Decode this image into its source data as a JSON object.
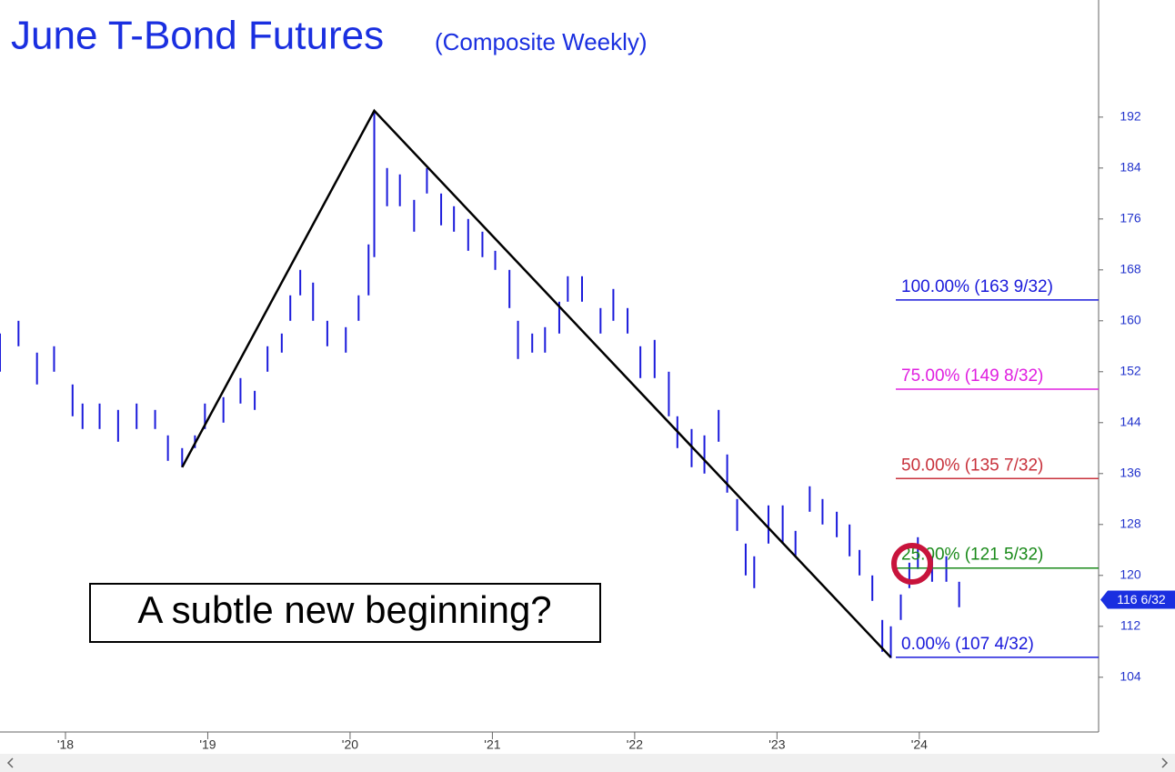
{
  "chart_data": {
    "type": "hlbar",
    "title": "June T-Bond Futures",
    "subtitle": "(Composite Weekly)",
    "annotation": "A subtle new beginning?",
    "color": "#1a1adb",
    "x": [
      2017.54,
      2017.67,
      2017.8,
      2017.92,
      2018.05,
      2018.12,
      2018.24,
      2018.37,
      2018.5,
      2018.63,
      2018.72,
      2018.82,
      2018.91,
      2018.98,
      2019.11,
      2019.23,
      2019.33,
      2019.42,
      2019.52,
      2019.58,
      2019.65,
      2019.74,
      2019.84,
      2019.97,
      2020.06,
      2020.13,
      2020.17,
      2020.26,
      2020.35,
      2020.45,
      2020.54,
      2020.64,
      2020.73,
      2020.83,
      2020.93,
      2021.02,
      2021.12,
      2021.18,
      2021.28,
      2021.37,
      2021.47,
      2021.53,
      2021.63,
      2021.76,
      2021.85,
      2021.95,
      2022.04,
      2022.14,
      2022.24,
      2022.3,
      2022.4,
      2022.49,
      2022.59,
      2022.65,
      2022.72,
      2022.78,
      2022.84,
      2022.94,
      2023.04,
      2023.13,
      2023.23,
      2023.32,
      2023.42,
      2023.51,
      2023.58,
      2023.67,
      2023.74,
      2023.8,
      2023.87,
      2023.93,
      2023.99,
      2024.09,
      2024.19,
      2024.28
    ],
    "high": [
      158,
      160,
      155,
      156,
      150,
      147,
      147,
      146,
      147,
      146,
      142,
      140,
      142,
      147,
      148,
      151,
      149,
      156,
      158,
      164,
      168,
      166,
      160,
      159,
      164,
      172,
      193,
      184,
      183,
      179,
      184,
      180,
      178,
      176,
      174,
      171,
      168,
      160,
      158,
      159,
      163,
      167,
      167,
      162,
      165,
      162,
      156,
      157,
      152,
      145,
      143,
      142,
      146,
      139,
      132,
      125,
      123,
      131,
      131,
      127,
      134,
      132,
      130,
      128,
      124,
      120,
      113,
      112,
      117,
      122,
      126,
      123,
      123,
      119
    ],
    "low": [
      152,
      156,
      150,
      152,
      145,
      143,
      143,
      141,
      143,
      143,
      138,
      137,
      140,
      143,
      144,
      147,
      146,
      152,
      155,
      160,
      164,
      160,
      156,
      155,
      160,
      164,
      170,
      178,
      178,
      174,
      180,
      175,
      174,
      171,
      170,
      168,
      162,
      154,
      155,
      155,
      158,
      163,
      163,
      158,
      160,
      158,
      151,
      151,
      145,
      140,
      137,
      136,
      141,
      133,
      127,
      120,
      118,
      125,
      125,
      123,
      130,
      128,
      126,
      123,
      120,
      116,
      108,
      107,
      113,
      118,
      121,
      119,
      119,
      115
    ],
    "trend": {
      "x": [
        2018.82,
        2020.17,
        2023.8
      ],
      "y": [
        137,
        193,
        107.125
      ]
    },
    "levels": [
      {
        "label": "100.00% (163 9/32)",
        "value": 163.28125,
        "color": "#1a1adb"
      },
      {
        "label": "75.00% (149 8/32)",
        "value": 149.25,
        "color": "#e020e0"
      },
      {
        "label": "50.00% (135 7/32)",
        "value": 135.21875,
        "color": "#c8323c"
      },
      {
        "label": "25.00% (121 5/32)",
        "value": 121.15625,
        "color": "#1a8a1a"
      },
      {
        "label": "0.00% (107 4/32)",
        "value": 107.125,
        "color": "#1a1adb"
      }
    ],
    "last_price": {
      "value": 116.1875,
      "label": "116 6/32"
    },
    "xlim": [
      2017.54,
      2025.26
    ],
    "ylim": [
      95.4,
      210.4
    ],
    "xticks": [
      {
        "value": 2018,
        "label": "'18"
      },
      {
        "value": 2019,
        "label": "'19"
      },
      {
        "value": 2020,
        "label": "'20"
      },
      {
        "value": 2021,
        "label": "'21"
      },
      {
        "value": 2022,
        "label": "'22"
      },
      {
        "value": 2023,
        "label": "'23"
      },
      {
        "value": 2024,
        "label": "'24"
      }
    ],
    "yticks": [
      104,
      112,
      120,
      128,
      136,
      144,
      152,
      160,
      168,
      176,
      184,
      192
    ]
  }
}
